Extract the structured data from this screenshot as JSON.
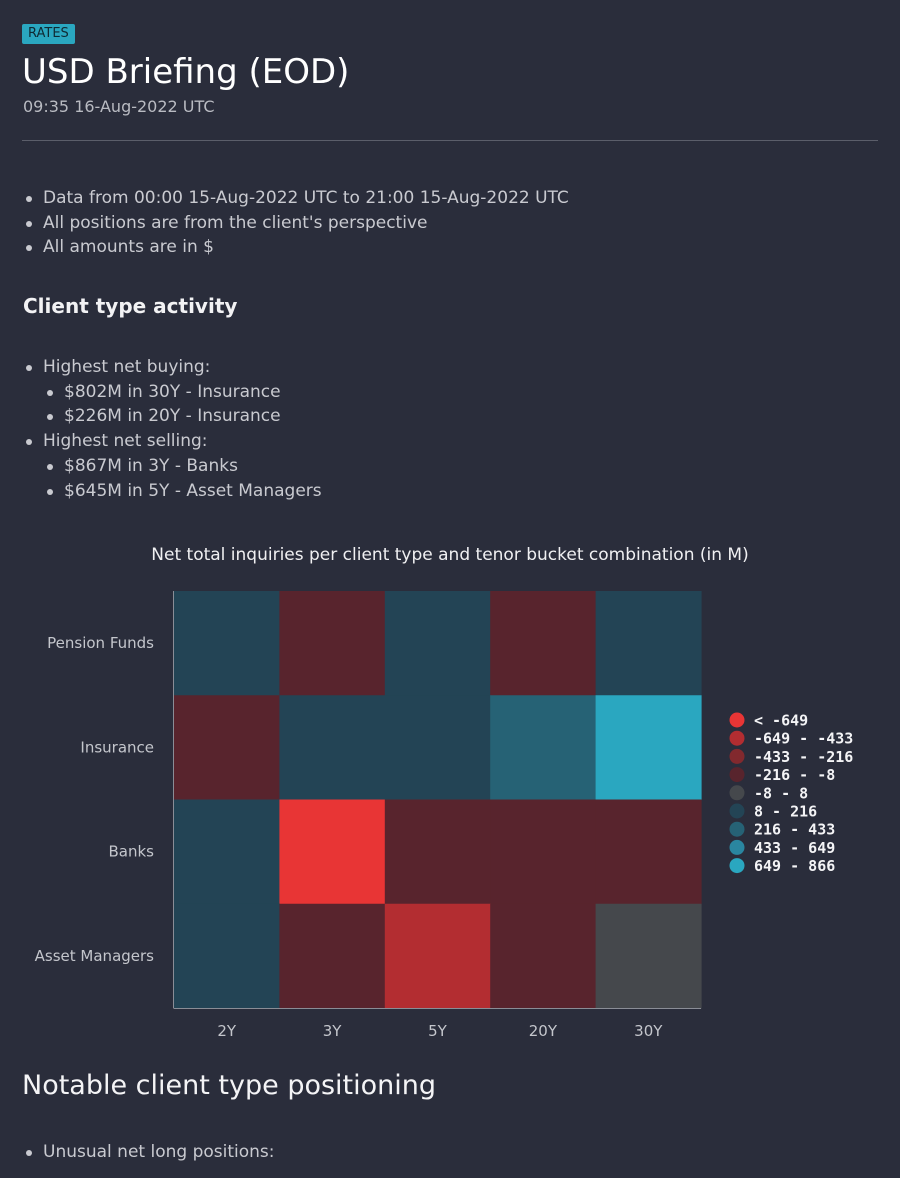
{
  "header": {
    "badge": "RATES",
    "title": "USD Briefing (EOD)",
    "timestamp": "09:35 16-Aug-2022 UTC"
  },
  "notes": [
    "Data from 00:00 15-Aug-2022 UTC to 21:00 15-Aug-2022 UTC",
    "All positions are from the client's perspective",
    "All amounts are in $"
  ],
  "client_activity": {
    "heading": "Client type activity",
    "buying_label": "Highest net buying:",
    "buying": [
      "$802M in 30Y - Insurance",
      "$226M in 20Y - Insurance"
    ],
    "selling_label": "Highest net selling:",
    "selling": [
      "$867M in 3Y - Banks",
      "$645M in 5Y - Asset Managers"
    ]
  },
  "chart_data": {
    "type": "heatmap",
    "title": "Net total inquiries per client type and tenor bucket combination (in M)",
    "x": [
      "2Y",
      "3Y",
      "5Y",
      "20Y",
      "30Y"
    ],
    "y": [
      "Pension Funds",
      "Insurance",
      "Banks",
      "Asset Managers"
    ],
    "z": [
      [
        100,
        -100,
        100,
        -100,
        100
      ],
      [
        -100,
        100,
        100,
        226,
        802
      ],
      [
        100,
        -867,
        -100,
        -100,
        -100
      ],
      [
        100,
        -100,
        -645,
        -100,
        0
      ]
    ],
    "legend": {
      "position": "right",
      "bins": [
        {
          "label": "< -649",
          "color": "#e83535"
        },
        {
          "label": "-649 - -433",
          "color": "#b32d31"
        },
        {
          "label": "-433 - -216",
          "color": "#82292e"
        },
        {
          "label": "-216 - -8",
          "color": "#58242d"
        },
        {
          "label": "-8 - 8",
          "color": "#45484c"
        },
        {
          "label": "8 - 216",
          "color": "#234455"
        },
        {
          "label": "216 - 433",
          "color": "#266275"
        },
        {
          "label": "433 - 649",
          "color": "#2a86a0"
        },
        {
          "label": "649 - 866",
          "color": "#2aa7c0"
        }
      ],
      "thresholds": [
        -649,
        -433,
        -216,
        -8,
        8,
        216,
        433,
        649
      ]
    }
  },
  "positioning": {
    "heading": "Notable client type positioning",
    "first_item": "Unusual net long positions:"
  }
}
